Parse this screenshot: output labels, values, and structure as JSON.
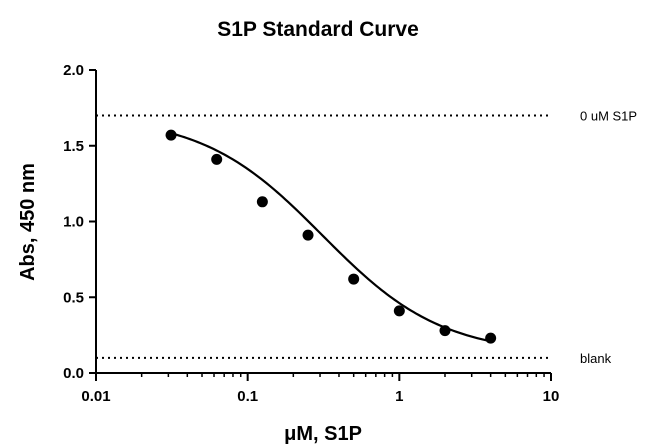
{
  "chart_data": {
    "type": "scatter",
    "title": "S1P Standard Curve",
    "xlabel": "μM, S1P",
    "ylabel": "Abs, 450 nm",
    "xscale": "log",
    "xlim": [
      0.01,
      10
    ],
    "ylim": [
      0.0,
      2.0
    ],
    "x_ticks": [
      0.01,
      0.1,
      1,
      10
    ],
    "x_tick_labels": [
      "0.01",
      "0.1",
      "1",
      "10"
    ],
    "y_ticks": [
      0.0,
      0.5,
      1.0,
      1.5,
      2.0
    ],
    "y_tick_labels": [
      "0.0",
      "0.5",
      "1.0",
      "1.5",
      "2.0"
    ],
    "grid": false,
    "series": [
      {
        "points": [
          {
            "x": 0.03125,
            "y": 1.57
          },
          {
            "x": 0.0625,
            "y": 1.41
          },
          {
            "x": 0.125,
            "y": 1.13
          },
          {
            "x": 0.25,
            "y": 0.91
          },
          {
            "x": 0.5,
            "y": 0.62
          },
          {
            "x": 1.0,
            "y": 0.41
          },
          {
            "x": 2.0,
            "y": 0.28
          },
          {
            "x": 4.0,
            "y": 0.23
          }
        ]
      }
    ],
    "fit_curve": {
      "type": "4PL",
      "top": 1.7,
      "bottom": 0.12,
      "ic50": 0.31,
      "hill": 1.1
    },
    "reference_lines": [
      {
        "y": 1.7,
        "label": "0 uM S1P",
        "style": "dotted"
      },
      {
        "y": 0.1,
        "label": "blank",
        "style": "dotted"
      }
    ]
  }
}
